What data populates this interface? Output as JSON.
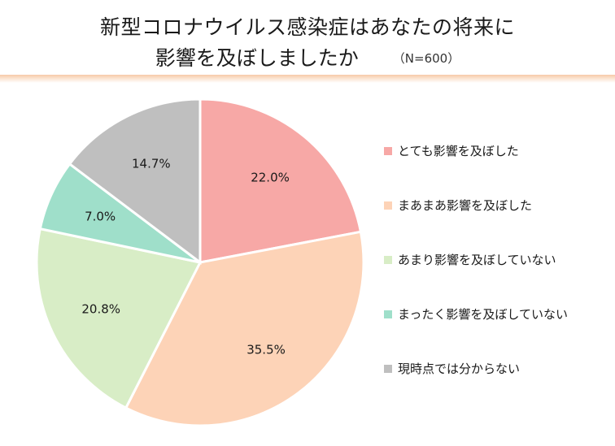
{
  "title": {
    "line1": "新型コロナウイルス感染症はあなたの将来に",
    "line2": "影響を及ぼしましたか",
    "n_note": "（N=600）"
  },
  "colors": {
    "accent_rule": "#f6c9a8"
  },
  "chart_data": {
    "type": "pie",
    "title": "新型コロナウイルス感染症はあなたの将来に影響を及ぼしましたか",
    "sample_size": "N=600",
    "start_angle_deg": 0,
    "direction": "clockwise",
    "legend_position": "right",
    "slices": [
      {
        "label": "とても影響を及ぼした",
        "value": 22.0,
        "display": "22.0%",
        "color": "#f7a8a6"
      },
      {
        "label": "まあまあ影響を及ぼした",
        "value": 35.5,
        "display": "35.5%",
        "color": "#fdd3b7"
      },
      {
        "label": "あまり影響を及ぼしていない",
        "value": 20.8,
        "display": "20.8%",
        "color": "#d8edc6"
      },
      {
        "label": "まったく影響を及ぼしていない",
        "value": 7.0,
        "display": "7.0%",
        "color": "#9fdfca"
      },
      {
        "label": "現時点では分からない",
        "value": 14.7,
        "display": "14.7%",
        "color": "#bfbfbf"
      }
    ]
  }
}
